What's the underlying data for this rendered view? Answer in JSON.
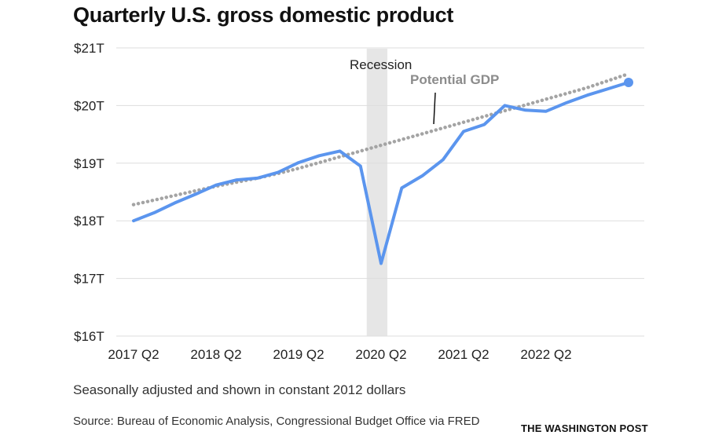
{
  "chart_data": {
    "type": "line",
    "title": "Quarterly U.S. gross domestic product",
    "subtitle": "",
    "xlabel": "",
    "ylabel": "",
    "x": [
      "2017 Q2",
      "2017 Q3",
      "2017 Q4",
      "2018 Q1",
      "2018 Q2",
      "2018 Q3",
      "2018 Q4",
      "2019 Q1",
      "2019 Q2",
      "2019 Q3",
      "2019 Q4",
      "2020 Q1",
      "2020 Q2",
      "2020 Q3",
      "2020 Q4",
      "2021 Q1",
      "2021 Q2",
      "2021 Q3",
      "2021 Q4",
      "2022 Q1",
      "2022 Q2",
      "2022 Q3",
      "2022 Q4",
      "2023 Q1",
      "2023 Q2"
    ],
    "x_tick_labels": [
      "2017 Q2",
      "2018 Q2",
      "2019 Q2",
      "2020 Q2",
      "2021 Q2",
      "2022 Q2"
    ],
    "y_tick_labels": [
      "$16T",
      "$17T",
      "$18T",
      "$19T",
      "$20T",
      "$21T"
    ],
    "y_ticks": [
      16,
      17,
      18,
      19,
      20,
      21
    ],
    "ylim": [
      16,
      21
    ],
    "grid": true,
    "series": [
      {
        "name": "",
        "style": "solid",
        "color": "#5b95ee",
        "values": [
          18.0,
          18.14,
          18.31,
          18.46,
          18.62,
          18.71,
          18.74,
          18.84,
          19.01,
          19.13,
          19.21,
          18.95,
          17.26,
          18.57,
          18.78,
          19.06,
          19.55,
          19.67,
          20.0,
          19.92,
          19.9,
          20.05,
          20.18,
          20.29,
          20.4
        ]
      },
      {
        "name": "Potential GDP",
        "style": "dotted",
        "color": "#a4a4a4",
        "values": [
          18.28,
          18.36,
          18.44,
          18.52,
          18.6,
          18.67,
          18.74,
          18.82,
          18.91,
          19.01,
          19.11,
          19.21,
          19.31,
          19.41,
          19.51,
          19.61,
          19.71,
          19.81,
          19.91,
          20.01,
          20.11,
          20.21,
          20.31,
          20.43,
          20.55
        ]
      }
    ],
    "annotations": {
      "recession_label": "Recession",
      "recession_range": [
        "2020 Q1",
        "2020 Q2"
      ],
      "potential_label": "Potential GDP"
    }
  },
  "footer": {
    "note": "Seasonally adjusted and shown in constant 2012 dollars",
    "source": "Source: Bureau of Economic Analysis, Congressional Budget Office via FRED",
    "brand": "THE WASHINGTON POST"
  },
  "colors": {
    "actual_line": "#5b95ee",
    "potential_line": "#a4a4a4",
    "recession_band": "#e6e6e6",
    "grid": "#dddddd",
    "text": "#222222"
  }
}
